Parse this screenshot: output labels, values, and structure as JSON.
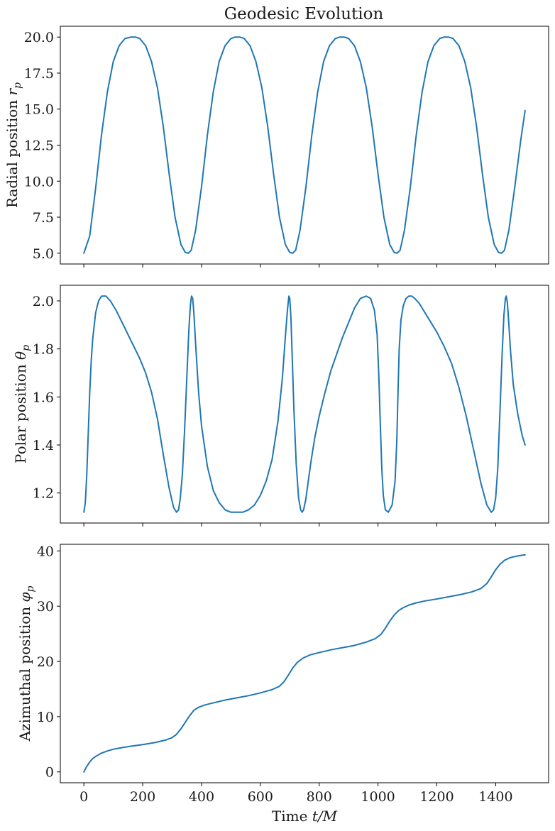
{
  "title": "Geodesic Evolution",
  "colors": {
    "series": "#1f77b4",
    "frame": "#000000",
    "background": "#ffffff"
  },
  "chart_data": [
    {
      "type": "line",
      "title": "Geodesic Evolution",
      "xlabel": "",
      "ylabel": "Radial position r_p",
      "xlim": [
        -80,
        1580
      ],
      "ylim": [
        4.25,
        20.75
      ],
      "xticks": [
        0,
        200,
        400,
        600,
        800,
        1000,
        1200,
        1400
      ],
      "yticks": [
        5.0,
        7.5,
        10.0,
        12.5,
        15.0,
        17.5,
        20.0
      ],
      "ytick_labels": [
        "5.0",
        "7.5",
        "10.0",
        "12.5",
        "15.0",
        "17.5",
        "20.0"
      ],
      "show_xtick_labels": false,
      "grid": false,
      "series": [
        {
          "x": [
            0,
            20,
            40,
            60,
            80,
            100,
            120,
            140,
            160,
            175,
            190,
            210,
            230,
            250,
            270,
            290,
            310,
            330,
            345,
            355,
            365,
            380,
            400,
            420,
            440,
            460,
            480,
            500,
            515,
            530,
            545,
            565,
            585,
            605,
            625,
            645,
            665,
            685,
            700,
            710,
            720,
            735,
            755,
            775,
            795,
            815,
            835,
            855,
            870,
            885,
            900,
            920,
            940,
            960,
            980,
            1000,
            1020,
            1040,
            1055,
            1065,
            1075,
            1090,
            1110,
            1130,
            1150,
            1170,
            1190,
            1210,
            1225,
            1240,
            1255,
            1275,
            1295,
            1315,
            1335,
            1355,
            1375,
            1395,
            1410,
            1420,
            1430,
            1445,
            1465,
            1485,
            1500
          ],
          "y": [
            5.0,
            6.2,
            9.5,
            13.2,
            16.2,
            18.3,
            19.4,
            19.9,
            20.0,
            20.0,
            19.9,
            19.4,
            18.3,
            16.5,
            13.8,
            10.5,
            7.5,
            5.6,
            5.05,
            5.0,
            5.2,
            6.6,
            9.6,
            13.2,
            16.2,
            18.3,
            19.4,
            19.9,
            20.0,
            20.0,
            19.9,
            19.4,
            18.3,
            16.5,
            13.8,
            10.5,
            7.5,
            5.6,
            5.05,
            5.0,
            5.2,
            6.6,
            9.6,
            13.2,
            16.2,
            18.3,
            19.4,
            19.9,
            20.0,
            20.0,
            19.9,
            19.4,
            18.3,
            16.5,
            13.8,
            10.5,
            7.5,
            5.6,
            5.05,
            5.0,
            5.2,
            6.6,
            9.6,
            13.2,
            16.2,
            18.3,
            19.4,
            19.9,
            20.0,
            20.0,
            19.9,
            19.4,
            18.3,
            16.5,
            13.8,
            10.5,
            7.5,
            5.6,
            5.05,
            5.0,
            5.2,
            6.6,
            9.6,
            12.8,
            14.9
          ]
        }
      ]
    },
    {
      "type": "line",
      "xlabel": "",
      "ylabel": "Polar position θ_p",
      "xlim": [
        -80,
        1580
      ],
      "ylim": [
        1.075,
        2.065
      ],
      "xticks": [
        0,
        200,
        400,
        600,
        800,
        1000,
        1200,
        1400
      ],
      "yticks": [
        1.2,
        1.4,
        1.6,
        1.8,
        2.0
      ],
      "ytick_labels": [
        "1.2",
        "1.4",
        "1.6",
        "1.8",
        "2.0"
      ],
      "show_xtick_labels": false,
      "grid": false,
      "series": [
        {
          "x": [
            0,
            5,
            10,
            15,
            20,
            25,
            30,
            40,
            50,
            60,
            75,
            90,
            110,
            130,
            150,
            170,
            190,
            210,
            230,
            250,
            270,
            290,
            305,
            315,
            322,
            328,
            335,
            342,
            350,
            357,
            362,
            366,
            370,
            374,
            380,
            390,
            400,
            420,
            440,
            460,
            480,
            500,
            520,
            540,
            560,
            580,
            600,
            620,
            640,
            660,
            675,
            685,
            692,
            697,
            700,
            704,
            708,
            714,
            722,
            730,
            737,
            742,
            747,
            754,
            762,
            772,
            785,
            800,
            820,
            840,
            860,
            880,
            900,
            920,
            940,
            960,
            975,
            988,
            997,
            1003,
            1008,
            1013,
            1018,
            1025,
            1035,
            1048,
            1058,
            1064,
            1068,
            1072,
            1078,
            1086,
            1095,
            1105,
            1115,
            1125,
            1140,
            1155,
            1175,
            1200,
            1225,
            1250,
            1275,
            1300,
            1325,
            1350,
            1370,
            1385,
            1393,
            1400,
            1407,
            1414,
            1422,
            1428,
            1433,
            1436,
            1440,
            1445,
            1450,
            1460,
            1475,
            1490,
            1500
          ],
          "y": [
            1.12,
            1.16,
            1.28,
            1.45,
            1.62,
            1.75,
            1.84,
            1.95,
            2.0,
            2.02,
            2.02,
            2.0,
            1.96,
            1.91,
            1.86,
            1.81,
            1.76,
            1.7,
            1.62,
            1.51,
            1.36,
            1.22,
            1.14,
            1.12,
            1.13,
            1.18,
            1.28,
            1.45,
            1.68,
            1.88,
            1.98,
            2.02,
            2.01,
            1.95,
            1.82,
            1.62,
            1.48,
            1.31,
            1.21,
            1.16,
            1.13,
            1.12,
            1.12,
            1.12,
            1.13,
            1.15,
            1.19,
            1.25,
            1.34,
            1.5,
            1.68,
            1.85,
            1.96,
            2.02,
            2.01,
            1.93,
            1.78,
            1.55,
            1.32,
            1.18,
            1.13,
            1.12,
            1.13,
            1.17,
            1.24,
            1.33,
            1.43,
            1.52,
            1.62,
            1.71,
            1.78,
            1.85,
            1.91,
            1.97,
            2.01,
            2.02,
            2.01,
            1.96,
            1.86,
            1.68,
            1.48,
            1.3,
            1.19,
            1.13,
            1.12,
            1.15,
            1.25,
            1.42,
            1.62,
            1.8,
            1.92,
            1.98,
            2.01,
            2.02,
            2.02,
            2.01,
            1.99,
            1.96,
            1.92,
            1.87,
            1.81,
            1.74,
            1.64,
            1.52,
            1.38,
            1.24,
            1.15,
            1.12,
            1.13,
            1.18,
            1.3,
            1.52,
            1.78,
            1.94,
            2.01,
            2.02,
            1.99,
            1.9,
            1.8,
            1.65,
            1.53,
            1.44,
            1.4
          ]
        }
      ]
    },
    {
      "type": "line",
      "xlabel": "Time t/M",
      "ylabel": "Azimuthal position φ_p",
      "xlim": [
        -80,
        1580
      ],
      "ylim": [
        -1.96,
        41.2
      ],
      "xticks": [
        0,
        200,
        400,
        600,
        800,
        1000,
        1200,
        1400
      ],
      "xtick_labels": [
        "0",
        "200",
        "400",
        "600",
        "800",
        "1000",
        "1200",
        "1400"
      ],
      "yticks": [
        0,
        10,
        20,
        30,
        40
      ],
      "ytick_labels": [
        "0",
        "10",
        "20",
        "30",
        "40"
      ],
      "show_xtick_labels": true,
      "grid": false,
      "series": [
        {
          "x": [
            0,
            10,
            20,
            30,
            40,
            60,
            80,
            100,
            130,
            160,
            200,
            240,
            280,
            300,
            315,
            330,
            345,
            360,
            375,
            390,
            410,
            440,
            480,
            520,
            560,
            600,
            640,
            665,
            680,
            695,
            710,
            725,
            745,
            770,
            800,
            840,
            880,
            920,
            960,
            990,
            1010,
            1025,
            1040,
            1055,
            1070,
            1085,
            1105,
            1130,
            1160,
            1200,
            1240,
            1280,
            1320,
            1350,
            1370,
            1385,
            1400,
            1415,
            1430,
            1450,
            1475,
            1500
          ],
          "y": [
            0,
            1.0,
            1.8,
            2.4,
            2.8,
            3.4,
            3.8,
            4.1,
            4.4,
            4.65,
            4.95,
            5.3,
            5.8,
            6.2,
            6.8,
            7.8,
            9.0,
            10.2,
            11.2,
            11.7,
            12.1,
            12.5,
            13.0,
            13.4,
            13.8,
            14.3,
            14.9,
            15.5,
            16.3,
            17.5,
            18.8,
            19.8,
            20.6,
            21.2,
            21.6,
            22.1,
            22.5,
            22.9,
            23.5,
            24.1,
            24.9,
            26.0,
            27.3,
            28.4,
            29.2,
            29.7,
            30.2,
            30.6,
            30.95,
            31.3,
            31.7,
            32.1,
            32.6,
            33.2,
            34.1,
            35.3,
            36.6,
            37.6,
            38.3,
            38.8,
            39.1,
            39.3
          ]
        }
      ]
    }
  ]
}
